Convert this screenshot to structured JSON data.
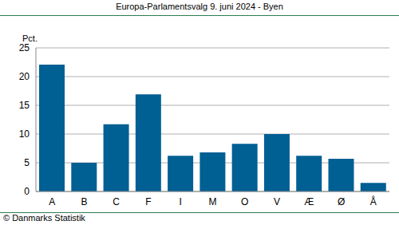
{
  "chart_data": {
    "type": "bar",
    "title": "Europa-Parlamentsvalg 9. juni 2024 - Byen",
    "y_label": "Pct.",
    "source": "© Danmarks Statistik",
    "categories": [
      "A",
      "B",
      "C",
      "F",
      "I",
      "M",
      "O",
      "V",
      "Æ",
      "Ø",
      "Å"
    ],
    "values": [
      22.1,
      5.0,
      11.7,
      16.9,
      6.2,
      6.8,
      8.3,
      10.0,
      6.2,
      5.7,
      1.5
    ],
    "color": "#005f93",
    "ylim": [
      0,
      25
    ],
    "yticks": [
      0,
      5,
      10,
      15,
      20,
      25
    ],
    "grid": true
  }
}
